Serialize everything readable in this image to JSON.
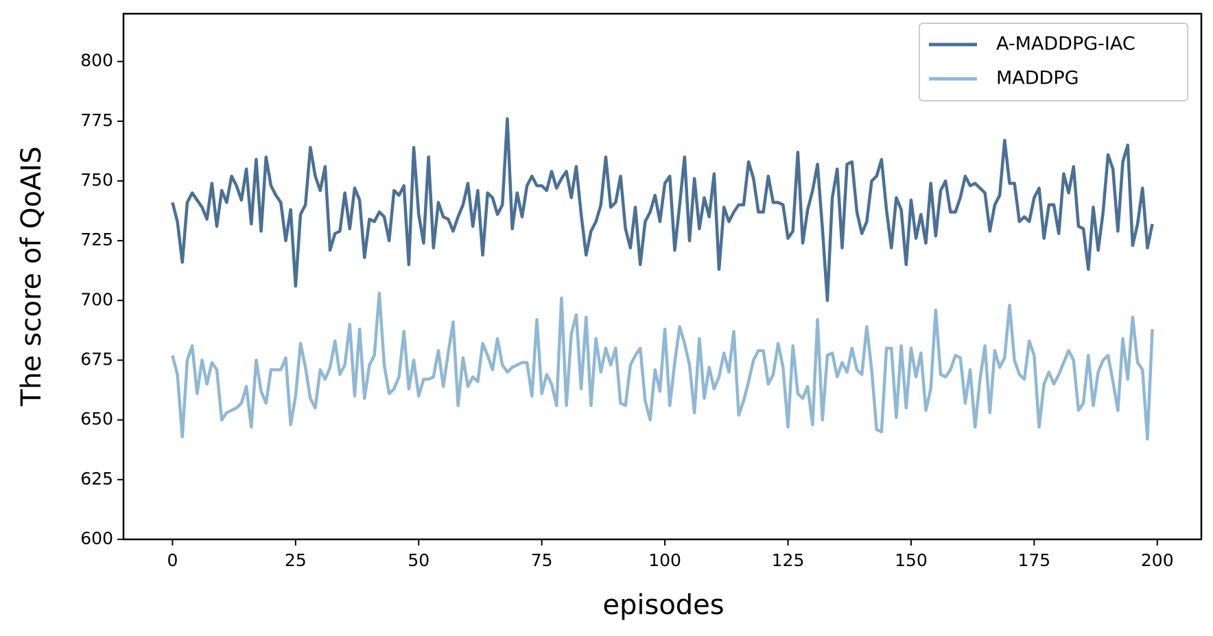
{
  "chart_data": {
    "type": "line",
    "xlabel": "episodes",
    "ylabel": "The score of QoAIS",
    "x": [
      0,
      1,
      2,
      3,
      4,
      5,
      6,
      7,
      8,
      9,
      10,
      11,
      12,
      13,
      14,
      15,
      16,
      17,
      18,
      19,
      20,
      21,
      22,
      23,
      24,
      25,
      26,
      27,
      28,
      29,
      30,
      31,
      32,
      33,
      34,
      35,
      36,
      37,
      38,
      39,
      40,
      41,
      42,
      43,
      44,
      45,
      46,
      47,
      48,
      49,
      50,
      51,
      52,
      53,
      54,
      55,
      56,
      57,
      58,
      59,
      60,
      61,
      62,
      63,
      64,
      65,
      66,
      67,
      68,
      69,
      70,
      71,
      72,
      73,
      74,
      75,
      76,
      77,
      78,
      79,
      80,
      81,
      82,
      83,
      84,
      85,
      86,
      87,
      88,
      89,
      90,
      91,
      92,
      93,
      94,
      95,
      96,
      97,
      98,
      99,
      100,
      101,
      102,
      103,
      104,
      105,
      106,
      107,
      108,
      109,
      110,
      111,
      112,
      113,
      114,
      115,
      116,
      117,
      118,
      119,
      120,
      121,
      122,
      123,
      124,
      125,
      126,
      127,
      128,
      129,
      130,
      131,
      132,
      133,
      134,
      135,
      136,
      137,
      138,
      139,
      140,
      141,
      142,
      143,
      144,
      145,
      146,
      147,
      148,
      149,
      150,
      151,
      152,
      153,
      154,
      155,
      156,
      157,
      158,
      159,
      160,
      161,
      162,
      163,
      164,
      165,
      166,
      167,
      168,
      169,
      170,
      171,
      172,
      173,
      174,
      175,
      176,
      177,
      178,
      179,
      180,
      181,
      182,
      183,
      184,
      185,
      186,
      187,
      188,
      189,
      190,
      191,
      192,
      193,
      194,
      195,
      196,
      197,
      198,
      199
    ],
    "series": [
      {
        "name": "A-MADDPG-IAC",
        "color": "#4a7096",
        "values": [
          741,
          733,
          716,
          741,
          745,
          742,
          739,
          734,
          749,
          731,
          746,
          741,
          752,
          748,
          742,
          755,
          732,
          759,
          729,
          760,
          748,
          744,
          741,
          725,
          738,
          706,
          736,
          740,
          764,
          752,
          746,
          756,
          721,
          728,
          729,
          745,
          730,
          747,
          742,
          718,
          734,
          733,
          737,
          735,
          725,
          746,
          744,
          748,
          715,
          764,
          736,
          724,
          760,
          722,
          741,
          735,
          734,
          729,
          735,
          740,
          749,
          731,
          746,
          719,
          745,
          743,
          736,
          740,
          776,
          730,
          745,
          735,
          748,
          752,
          748,
          748,
          746,
          754,
          747,
          751,
          754,
          743,
          756,
          736,
          719,
          729,
          733,
          740,
          760,
          739,
          741,
          752,
          730,
          722,
          739,
          715,
          733,
          737,
          744,
          733,
          749,
          752,
          721,
          740,
          760,
          725,
          751,
          730,
          743,
          735,
          753,
          713,
          739,
          733,
          737,
          740,
          740,
          758,
          751,
          737,
          737,
          752,
          741,
          741,
          740,
          726,
          729,
          762,
          724,
          738,
          746,
          757,
          730,
          700,
          743,
          755,
          722,
          757,
          758,
          737,
          728,
          733,
          750,
          752,
          759,
          738,
          722,
          743,
          738,
          715,
          742,
          726,
          736,
          724,
          749,
          727,
          746,
          750,
          737,
          737,
          743,
          752,
          748,
          749,
          747,
          745,
          729,
          740,
          744,
          767,
          749,
          749,
          733,
          735,
          733,
          743,
          747,
          726,
          740,
          740,
          728,
          753,
          745,
          756,
          731,
          730,
          713,
          739,
          721,
          737,
          761,
          755,
          729,
          758,
          765,
          723,
          732,
          747,
          722,
          732
        ]
      },
      {
        "name": "MADDPG",
        "color": "#8fb8d4",
        "values": [
          677,
          669,
          643,
          675,
          681,
          661,
          675,
          665,
          674,
          671,
          650,
          653,
          654,
          655,
          657,
          664,
          647,
          675,
          662,
          657,
          671,
          671,
          671,
          676,
          648,
          660,
          682,
          672,
          659,
          655,
          671,
          667,
          672,
          683,
          669,
          673,
          690,
          660,
          688,
          659,
          673,
          677,
          703,
          673,
          661,
          663,
          668,
          687,
          663,
          675,
          660,
          667,
          667,
          668,
          679,
          664,
          678,
          691,
          656,
          676,
          664,
          668,
          666,
          682,
          677,
          671,
          684,
          673,
          670,
          672,
          673,
          674,
          674,
          660,
          692,
          661,
          669,
          665,
          656,
          701,
          656,
          686,
          694,
          663,
          693,
          656,
          684,
          670,
          680,
          673,
          680,
          657,
          656,
          673,
          677,
          680,
          658,
          650,
          671,
          662,
          688,
          656,
          674,
          689,
          682,
          673,
          653,
          684,
          659,
          672,
          663,
          668,
          678,
          670,
          687,
          652,
          658,
          666,
          675,
          679,
          679,
          665,
          669,
          682,
          672,
          647,
          681,
          661,
          659,
          664,
          648,
          692,
          650,
          677,
          678,
          668,
          674,
          670,
          680,
          671,
          669,
          689,
          671,
          646,
          645,
          680,
          680,
          651,
          681,
          655,
          680,
          668,
          678,
          654,
          663,
          696,
          669,
          668,
          671,
          677,
          676,
          657,
          671,
          647,
          667,
          681,
          653,
          679,
          672,
          676,
          698,
          675,
          669,
          667,
          683,
          677,
          647,
          665,
          670,
          665,
          669,
          674,
          679,
          675,
          654,
          657,
          677,
          656,
          670,
          675,
          677,
          666,
          654,
          684,
          667,
          693,
          674,
          671,
          642,
          688
        ]
      }
    ],
    "xlim": [
      -9.95,
      208.95
    ],
    "ylim": [
      600,
      820
    ],
    "xticks": [
      0,
      25,
      50,
      75,
      100,
      125,
      150,
      175,
      200
    ],
    "yticks": [
      600,
      625,
      650,
      675,
      700,
      725,
      750,
      775,
      800
    ],
    "legend": "upper right"
  }
}
